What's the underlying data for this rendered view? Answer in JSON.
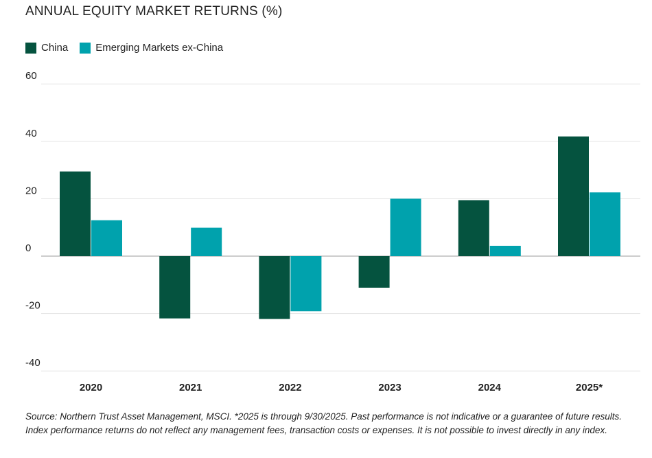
{
  "chart_data": {
    "type": "bar",
    "title": "ANNUAL EQUITY MARKET RETURNS (%)",
    "categories": [
      "2020",
      "2021",
      "2022",
      "2023",
      "2024",
      "2025*"
    ],
    "series": [
      {
        "name": "China",
        "color": "#05533f",
        "values": [
          29.5,
          -21.7,
          -21.9,
          -11.0,
          19.5,
          41.7
        ]
      },
      {
        "name": "Emerging Markets ex-China",
        "color": "#00a2ad",
        "values": [
          12.5,
          9.9,
          -19.2,
          20.0,
          3.6,
          22.2
        ]
      }
    ],
    "ylim": [
      -40,
      60
    ],
    "yticks": [
      60,
      40,
      20,
      0,
      -20,
      -40
    ],
    "ytick_labels": [
      "60",
      "40",
      "20",
      "0",
      "-20",
      "-40"
    ],
    "grid": true,
    "legend_position": "top-left"
  },
  "footnote": "Source: Northern Trust Asset Management, MSCI. *2025 is through 9/30/2025. Past performance is not indicative or a guarantee of future results. Index performance returns do not reflect any management fees, transaction costs or expenses. It is not possible to invest directly in any index."
}
